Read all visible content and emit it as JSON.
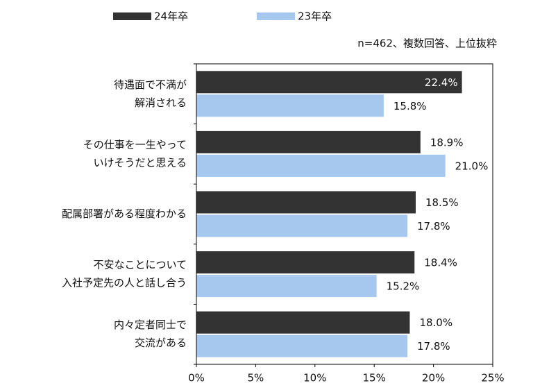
{
  "chart_data": {
    "type": "hbar",
    "subtitle": "n=462、複数回答、上位抜粋",
    "categories": [
      [
        "待遇面で不満が",
        "解消される"
      ],
      [
        "その仕事を一生やって",
        "いけそうだと思える"
      ],
      [
        "配属部署がある程度わかる"
      ],
      [
        "不安なことについて",
        "入社予定先の人と話し合う"
      ],
      [
        "内々定者同士で",
        "交流がある"
      ]
    ],
    "series": [
      {
        "name": "24年卒",
        "color": "#333333",
        "values": [
          22.4,
          18.9,
          18.5,
          18.4,
          18.0
        ],
        "value_labels": [
          "22.4%",
          "18.9%",
          "18.5%",
          "18.4%",
          "18.0%"
        ]
      },
      {
        "name": "23年卒",
        "color": "#a6c8ee",
        "values": [
          15.8,
          21.0,
          17.8,
          15.2,
          17.8
        ],
        "value_labels": [
          "15.8%",
          "21.0%",
          "17.8%",
          "15.2%",
          "17.8%"
        ]
      }
    ],
    "xlim": [
      0,
      25
    ],
    "xticks": [
      {
        "value": 0,
        "label": "0%"
      },
      {
        "value": 5,
        "label": "5%"
      },
      {
        "value": 10,
        "label": "10%"
      },
      {
        "value": 15,
        "label": "15%"
      },
      {
        "value": 20,
        "label": "20%"
      },
      {
        "value": 25,
        "label": "25%"
      }
    ]
  }
}
